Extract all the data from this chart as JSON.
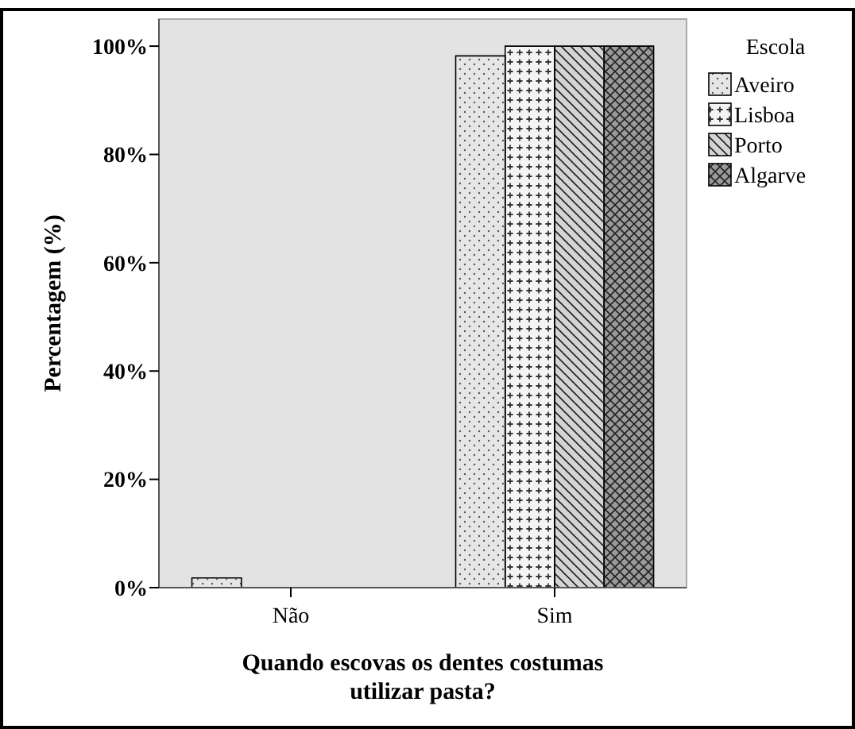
{
  "chart_data": {
    "type": "bar",
    "xlabel": "Quando escovas os dentes costumas utilizar pasta?",
    "ylabel": "Percentagem (%)",
    "legend_title": "Escola",
    "categories": [
      "Não",
      "Sim"
    ],
    "series": [
      {
        "name": "Aveiro",
        "color": "#e6e6e6",
        "values": [
          1.8,
          98.2
        ]
      },
      {
        "name": "Lisboa",
        "color": "#f4f4f4",
        "values": [
          0,
          100
        ]
      },
      {
        "name": "Porto",
        "color": "#d4d4d4",
        "values": [
          0,
          100
        ]
      },
      {
        "name": "Algarve",
        "color": "#9a9a9a",
        "values": [
          0,
          100
        ]
      }
    ],
    "ylim": [
      0,
      105
    ],
    "yticks": [
      {
        "value": 0,
        "label": "0%"
      },
      {
        "value": 20,
        "label": "20%"
      },
      {
        "value": 40,
        "label": "40%"
      },
      {
        "value": 60,
        "label": "60%"
      },
      {
        "value": 80,
        "label": "80%"
      },
      {
        "value": 100,
        "label": "100%"
      }
    ],
    "grid": false,
    "legend": "top right"
  }
}
